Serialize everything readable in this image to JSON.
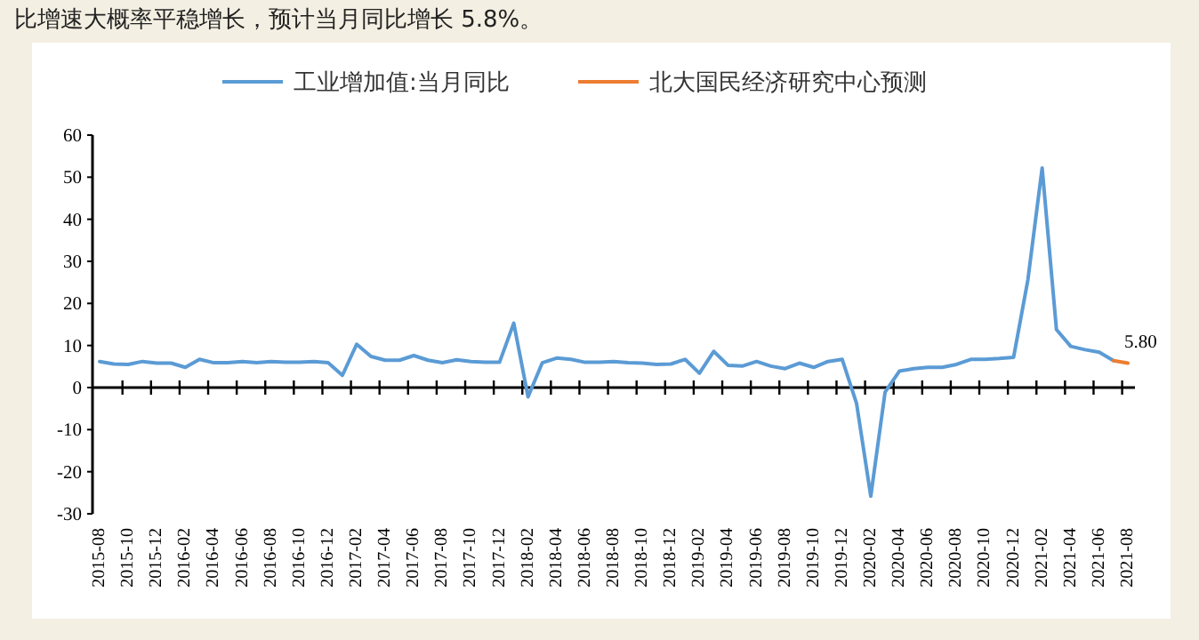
{
  "chart_data": {
    "type": "line",
    "annotations": [
      "比增速大概率平稳增长，预计当月同比增长 5.8%。"
    ],
    "categories": [
      "2015-08",
      null,
      "2015-10",
      null,
      "2015-12",
      null,
      "2016-02",
      null,
      "2016-04",
      null,
      "2016-06",
      null,
      "2016-08",
      null,
      "2016-10",
      null,
      "2016-12",
      null,
      "2017-02",
      null,
      "2017-04",
      null,
      "2017-06",
      null,
      "2017-08",
      null,
      "2017-10",
      null,
      "2017-12",
      null,
      "2018-02",
      null,
      "2018-04",
      null,
      "2018-06",
      null,
      "2018-08",
      null,
      "2018-10",
      null,
      "2018-12",
      null,
      "2019-02",
      null,
      "2019-04",
      null,
      "2019-06",
      null,
      "2019-08",
      null,
      "2019-10",
      null,
      "2019-12",
      null,
      "2020-02",
      null,
      "2020-04",
      null,
      "2020-06",
      null,
      "2020-08",
      null,
      "2020-10",
      null,
      "2020-12",
      null,
      "2021-02",
      null,
      "2021-04",
      null,
      "2021-06",
      null,
      "2021-08"
    ],
    "series": [
      {
        "name": "工业增加值:当月同比",
        "color": "#5b9bd5",
        "values": [
          6.2,
          5.6,
          5.5,
          6.2,
          5.8,
          5.8,
          4.8,
          6.7,
          5.9,
          5.9,
          6.2,
          5.9,
          6.2,
          6.0,
          6.0,
          6.2,
          5.9,
          2.9,
          10.3,
          7.4,
          6.5,
          6.5,
          7.6,
          6.5,
          5.9,
          6.6,
          6.2,
          6.0,
          6.0,
          15.3,
          -2.2,
          5.9,
          7.0,
          6.7,
          6.0,
          6.0,
          6.2,
          5.9,
          5.8,
          5.5,
          5.6,
          6.7,
          3.4,
          8.6,
          5.3,
          5.1,
          6.2,
          5.1,
          4.5,
          5.8,
          4.8,
          6.2,
          6.7,
          -3.7,
          -25.8,
          -1.1,
          3.9,
          4.5,
          4.8,
          4.8,
          5.5,
          6.7,
          6.7,
          6.9,
          7.2,
          25.6,
          52.2,
          13.8,
          9.8,
          9.0,
          8.4,
          6.4,
          null
        ]
      },
      {
        "name": "北大国民经济研究中心预测",
        "color": "#ed7d31",
        "values": [
          null,
          null,
          null,
          null,
          null,
          null,
          null,
          null,
          null,
          null,
          null,
          null,
          null,
          null,
          null,
          null,
          null,
          null,
          null,
          null,
          null,
          null,
          null,
          null,
          null,
          null,
          null,
          null,
          null,
          null,
          null,
          null,
          null,
          null,
          null,
          null,
          null,
          null,
          null,
          null,
          null,
          null,
          null,
          null,
          null,
          null,
          null,
          null,
          null,
          null,
          null,
          null,
          null,
          null,
          null,
          null,
          null,
          null,
          null,
          null,
          null,
          null,
          null,
          null,
          null,
          null,
          null,
          null,
          null,
          null,
          null,
          6.4,
          5.8
        ],
        "value_labels": [
          null,
          null,
          null,
          null,
          null,
          null,
          null,
          null,
          null,
          null,
          null,
          null,
          null,
          null,
          null,
          null,
          null,
          null,
          null,
          null,
          null,
          null,
          null,
          null,
          null,
          null,
          null,
          null,
          null,
          null,
          null,
          null,
          null,
          null,
          null,
          null,
          null,
          null,
          null,
          null,
          null,
          null,
          null,
          null,
          null,
          null,
          null,
          null,
          null,
          null,
          null,
          null,
          null,
          null,
          null,
          null,
          null,
          null,
          null,
          null,
          null,
          null,
          null,
          null,
          null,
          null,
          null,
          null,
          null,
          null,
          null,
          null,
          "5.80"
        ]
      }
    ],
    "ylim": [
      -30,
      60
    ],
    "yticks": [
      -30,
      -20,
      -10,
      0,
      10,
      20,
      30,
      40,
      50,
      60
    ],
    "legend": "top"
  }
}
